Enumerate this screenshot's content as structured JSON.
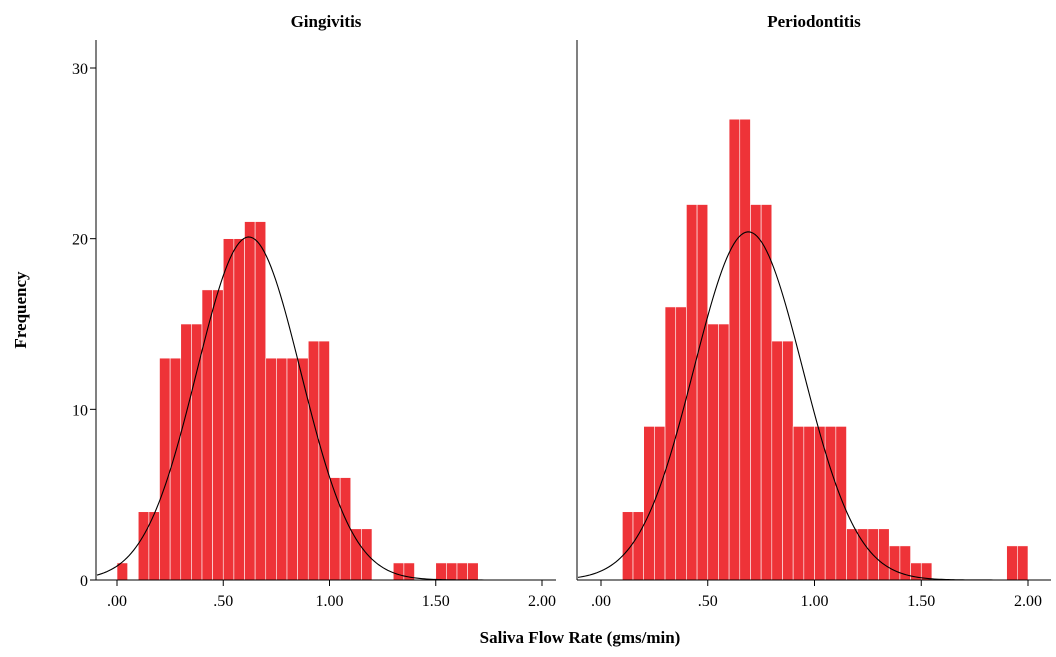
{
  "chart_data": {
    "type": "bar",
    "xlabel": "Saliva Flow Rate (gms/min)",
    "ylabel": "Frequency",
    "ylim": [
      0,
      30
    ],
    "xlim": [
      -0.1,
      2.1
    ],
    "y_ticks": [
      "0",
      "10",
      "20",
      "30"
    ],
    "x_ticks": [
      ".00",
      ".50",
      "1.00",
      "1.50",
      "2.00"
    ],
    "x_tick_values": [
      0,
      0.5,
      1.0,
      1.5,
      2.0
    ],
    "bar_color": "#ee3338",
    "bar_edge_color": "#ffffff",
    "curve_color": "#000000",
    "panels": [
      {
        "title": "Gingivitis",
        "bins": [
          {
            "start": 0.0,
            "end": 0.05,
            "count": 1
          },
          {
            "start": 0.05,
            "end": 0.1,
            "count": 0
          },
          {
            "start": 0.1,
            "end": 0.15,
            "count": 4
          },
          {
            "start": 0.15,
            "end": 0.2,
            "count": 4
          },
          {
            "start": 0.2,
            "end": 0.25,
            "count": 13
          },
          {
            "start": 0.25,
            "end": 0.3,
            "count": 13
          },
          {
            "start": 0.3,
            "end": 0.35,
            "count": 15
          },
          {
            "start": 0.35,
            "end": 0.4,
            "count": 15
          },
          {
            "start": 0.4,
            "end": 0.45,
            "count": 17
          },
          {
            "start": 0.45,
            "end": 0.5,
            "count": 17
          },
          {
            "start": 0.5,
            "end": 0.55,
            "count": 20
          },
          {
            "start": 0.55,
            "end": 0.6,
            "count": 20
          },
          {
            "start": 0.6,
            "end": 0.65,
            "count": 21
          },
          {
            "start": 0.65,
            "end": 0.7,
            "count": 21
          },
          {
            "start": 0.7,
            "end": 0.75,
            "count": 13
          },
          {
            "start": 0.75,
            "end": 0.8,
            "count": 13
          },
          {
            "start": 0.8,
            "end": 0.85,
            "count": 13
          },
          {
            "start": 0.85,
            "end": 0.9,
            "count": 13
          },
          {
            "start": 0.9,
            "end": 0.95,
            "count": 14
          },
          {
            "start": 0.95,
            "end": 1.0,
            "count": 14
          },
          {
            "start": 1.0,
            "end": 1.05,
            "count": 6
          },
          {
            "start": 1.05,
            "end": 1.1,
            "count": 6
          },
          {
            "start": 1.1,
            "end": 1.15,
            "count": 3
          },
          {
            "start": 1.15,
            "end": 1.2,
            "count": 3
          },
          {
            "start": 1.2,
            "end": 1.25,
            "count": 0
          },
          {
            "start": 1.25,
            "end": 1.3,
            "count": 0
          },
          {
            "start": 1.3,
            "end": 1.35,
            "count": 1
          },
          {
            "start": 1.35,
            "end": 1.4,
            "count": 1
          },
          {
            "start": 1.4,
            "end": 1.45,
            "count": 0
          },
          {
            "start": 1.45,
            "end": 1.5,
            "count": 0
          },
          {
            "start": 1.5,
            "end": 1.55,
            "count": 1
          },
          {
            "start": 1.55,
            "end": 1.6,
            "count": 1
          },
          {
            "start": 1.6,
            "end": 1.65,
            "count": 1
          },
          {
            "start": 1.65,
            "end": 1.7,
            "count": 1
          }
        ],
        "normal_curve": {
          "mean": 0.62,
          "sd": 0.245,
          "peak": 20.1
        }
      },
      {
        "title": "Periodontitis",
        "bins": [
          {
            "start": 0.1,
            "end": 0.15,
            "count": 4
          },
          {
            "start": 0.15,
            "end": 0.2,
            "count": 4
          },
          {
            "start": 0.2,
            "end": 0.25,
            "count": 9
          },
          {
            "start": 0.25,
            "end": 0.3,
            "count": 9
          },
          {
            "start": 0.3,
            "end": 0.35,
            "count": 16
          },
          {
            "start": 0.35,
            "end": 0.4,
            "count": 16
          },
          {
            "start": 0.4,
            "end": 0.45,
            "count": 22
          },
          {
            "start": 0.45,
            "end": 0.5,
            "count": 22
          },
          {
            "start": 0.5,
            "end": 0.55,
            "count": 15
          },
          {
            "start": 0.55,
            "end": 0.6,
            "count": 15
          },
          {
            "start": 0.6,
            "end": 0.65,
            "count": 27
          },
          {
            "start": 0.65,
            "end": 0.7,
            "count": 27
          },
          {
            "start": 0.7,
            "end": 0.75,
            "count": 22
          },
          {
            "start": 0.75,
            "end": 0.8,
            "count": 22
          },
          {
            "start": 0.8,
            "end": 0.85,
            "count": 14
          },
          {
            "start": 0.85,
            "end": 0.9,
            "count": 14
          },
          {
            "start": 0.9,
            "end": 0.95,
            "count": 9
          },
          {
            "start": 0.95,
            "end": 1.0,
            "count": 9
          },
          {
            "start": 1.0,
            "end": 1.05,
            "count": 9
          },
          {
            "start": 1.05,
            "end": 1.1,
            "count": 9
          },
          {
            "start": 1.1,
            "end": 1.15,
            "count": 9
          },
          {
            "start": 1.15,
            "end": 1.2,
            "count": 3
          },
          {
            "start": 1.2,
            "end": 1.25,
            "count": 3
          },
          {
            "start": 1.25,
            "end": 1.3,
            "count": 3
          },
          {
            "start": 1.3,
            "end": 1.35,
            "count": 3
          },
          {
            "start": 1.35,
            "end": 1.4,
            "count": 2
          },
          {
            "start": 1.4,
            "end": 1.45,
            "count": 2
          },
          {
            "start": 1.45,
            "end": 1.5,
            "count": 1
          },
          {
            "start": 1.5,
            "end": 1.55,
            "count": 1
          },
          {
            "start": 1.55,
            "end": 1.6,
            "count": 0
          },
          {
            "start": 1.6,
            "end": 1.65,
            "count": 0
          },
          {
            "start": 1.65,
            "end": 1.7,
            "count": 0
          },
          {
            "start": 1.7,
            "end": 1.75,
            "count": 0
          },
          {
            "start": 1.75,
            "end": 1.8,
            "count": 0
          },
          {
            "start": 1.8,
            "end": 1.85,
            "count": 0
          },
          {
            "start": 1.85,
            "end": 1.9,
            "count": 0
          },
          {
            "start": 1.9,
            "end": 1.95,
            "count": 2
          },
          {
            "start": 1.95,
            "end": 2.0,
            "count": 2
          }
        ],
        "normal_curve": {
          "mean": 0.69,
          "sd": 0.255,
          "peak": 20.4
        }
      }
    ]
  }
}
